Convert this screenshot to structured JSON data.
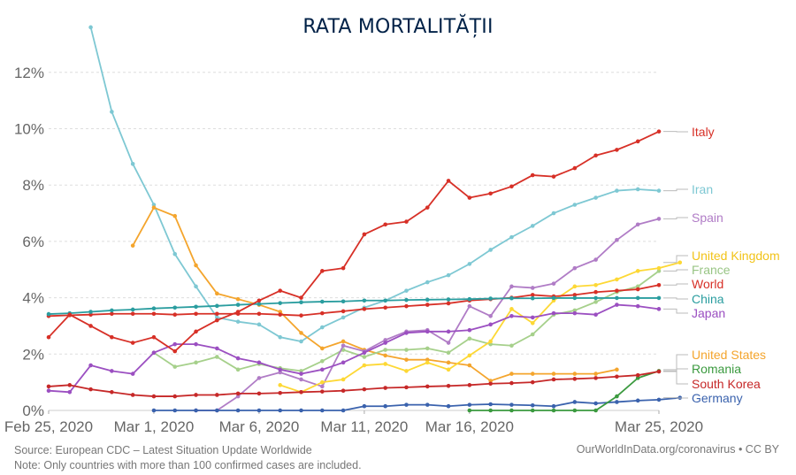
{
  "title": "RATA MORTALITĂȚII",
  "footer": {
    "source": "Source: European CDC – Latest Situation Update Worldwide",
    "note": "Note: Only countries with more than 100 confirmed cases are included.",
    "credit": "OurWorldInData.org/coronavirus • CC BY"
  },
  "chart_data": {
    "type": "line",
    "title": "RATA MORTALITĂȚII",
    "xlabel": "",
    "ylabel": "",
    "x_start": "Feb 25, 2020",
    "x_end": "Mar 25, 2020",
    "x_days": 30,
    "ylim": [
      0,
      13
    ],
    "y_ticks": [
      0,
      2,
      4,
      6,
      8,
      10,
      12
    ],
    "y_tick_labels": [
      "0%",
      "2%",
      "4%",
      "6%",
      "8%",
      "10%",
      "12%"
    ],
    "x_ticks": [
      {
        "day": 0,
        "label": "Feb 25, 2020"
      },
      {
        "day": 5,
        "label": "Mar 1, 2020"
      },
      {
        "day": 10,
        "label": "Mar 6, 2020"
      },
      {
        "day": 15,
        "label": "Mar 11, 2020"
      },
      {
        "day": 20,
        "label": "Mar 16, 2020"
      },
      {
        "day": 29,
        "label": "Mar 25, 2020"
      }
    ],
    "grid": true,
    "legend": "right (line-end labels)",
    "series": [
      {
        "name": "Italy",
        "color": "#d73027",
        "start_day": 0,
        "values": [
          2.6,
          3.4,
          3.0,
          2.6,
          2.4,
          2.6,
          2.1,
          2.8,
          3.2,
          3.5,
          3.9,
          4.25,
          4.0,
          4.95,
          5.05,
          6.25,
          6.6,
          6.7,
          7.2,
          8.15,
          7.55,
          7.7,
          7.95,
          8.35,
          8.3,
          8.6,
          9.05,
          9.25,
          9.55,
          9.9
        ]
      },
      {
        "name": "Iran",
        "color": "#7ec8d3",
        "start_day": 2,
        "values": [
          13.6,
          10.6,
          8.75,
          7.3,
          5.55,
          4.4,
          3.3,
          3.15,
          3.05,
          2.6,
          2.45,
          2.95,
          3.3,
          3.65,
          3.9,
          4.25,
          4.55,
          4.8,
          5.2,
          5.7,
          6.15,
          6.55,
          7.0,
          7.3,
          7.55,
          7.8,
          7.85,
          7.8
        ]
      },
      {
        "name": "Spain",
        "color": "#b07cc6",
        "start_day": 7,
        "values": [
          0,
          0,
          0.5,
          1.15,
          1.35,
          1.1,
          0.85,
          2.3,
          2.1,
          2.5,
          2.8,
          2.85,
          2.4,
          3.7,
          3.35,
          4.4,
          4.35,
          4.5,
          5.05,
          5.35,
          6.05,
          6.6,
          6.8
        ]
      },
      {
        "name": "United Kingdom",
        "color": "#fdd835",
        "start_day": 11,
        "values": [
          0.9,
          0.65,
          1.0,
          1.1,
          1.6,
          1.65,
          1.4,
          1.7,
          1.45,
          1.95,
          2.45,
          3.6,
          3.1,
          3.9,
          4.4,
          4.45,
          4.65,
          4.95,
          5.05,
          5.25
        ]
      },
      {
        "name": "France",
        "color": "#a6d08b",
        "start_day": 5,
        "values": [
          2.05,
          1.55,
          1.7,
          1.9,
          1.45,
          1.65,
          1.5,
          1.4,
          1.75,
          2.15,
          1.9,
          2.15,
          2.15,
          2.2,
          2.05,
          2.55,
          2.35,
          2.3,
          2.7,
          3.4,
          3.55,
          3.85,
          4.2,
          4.4,
          4.95
        ]
      },
      {
        "name": "World",
        "color": "#d73027",
        "start_day": 0,
        "values": [
          3.35,
          3.38,
          3.4,
          3.43,
          3.43,
          3.43,
          3.4,
          3.43,
          3.43,
          3.43,
          3.43,
          3.4,
          3.37,
          3.45,
          3.52,
          3.6,
          3.65,
          3.7,
          3.75,
          3.8,
          3.9,
          3.95,
          4.0,
          4.1,
          4.05,
          4.1,
          4.2,
          4.25,
          4.3,
          4.45
        ]
      },
      {
        "name": "China",
        "color": "#2a9d9f",
        "start_day": 0,
        "values": [
          3.42,
          3.45,
          3.5,
          3.55,
          3.58,
          3.62,
          3.65,
          3.68,
          3.71,
          3.75,
          3.78,
          3.81,
          3.84,
          3.86,
          3.87,
          3.9,
          3.9,
          3.92,
          3.93,
          3.94,
          3.95,
          3.97,
          3.98,
          3.98,
          3.99,
          3.99,
          3.99,
          3.99,
          3.99,
          3.99
        ]
      },
      {
        "name": "Japan",
        "color": "#9b4fc1",
        "start_day": 0,
        "values": [
          0.7,
          0.65,
          1.6,
          1.4,
          1.3,
          2.05,
          2.35,
          2.35,
          2.2,
          1.85,
          1.7,
          1.45,
          1.3,
          1.45,
          1.7,
          2.05,
          2.4,
          2.75,
          2.8,
          2.8,
          2.85,
          3.05,
          3.35,
          3.3,
          3.45,
          3.45,
          3.4,
          3.75,
          3.7,
          3.6
        ]
      },
      {
        "name": "United States",
        "color": "#f4a52d",
        "start_day": 4,
        "values": [
          5.85,
          7.2,
          6.9,
          5.15,
          4.15,
          3.95,
          3.75,
          3.5,
          2.75,
          2.2,
          2.45,
          2.15,
          1.95,
          1.8,
          1.8,
          1.7,
          1.6,
          1.05,
          1.3,
          1.3,
          1.3,
          1.3,
          1.3,
          1.45
        ]
      },
      {
        "name": "Romania",
        "color": "#3b9a3f",
        "start_day": 20,
        "values": [
          0,
          0,
          0,
          0,
          0,
          0,
          0,
          0.5,
          1.15,
          1.4
        ]
      },
      {
        "name": "South Korea",
        "color": "#c62828",
        "start_day": 0,
        "values": [
          0.85,
          0.9,
          0.75,
          0.65,
          0.55,
          0.5,
          0.5,
          0.55,
          0.55,
          0.6,
          0.6,
          0.62,
          0.65,
          0.67,
          0.7,
          0.75,
          0.8,
          0.82,
          0.85,
          0.87,
          0.9,
          0.95,
          0.97,
          1.0,
          1.1,
          1.12,
          1.15,
          1.2,
          1.25,
          1.38
        ]
      },
      {
        "name": "Germany",
        "color": "#3a62ad",
        "start_day": 5,
        "values": [
          0,
          0,
          0,
          0,
          0,
          0,
          0,
          0,
          0,
          0,
          0.15,
          0.15,
          0.2,
          0.2,
          0.15,
          0.2,
          0.22,
          0.2,
          0.18,
          0.15,
          0.3,
          0.25,
          0.3,
          0.35,
          0.38,
          0.45
        ]
      }
    ],
    "legend_entries": [
      {
        "name": "Italy",
        "color": "#d73027"
      },
      {
        "name": "Iran",
        "color": "#7ec8d3"
      },
      {
        "name": "Spain",
        "color": "#b07cc6"
      },
      {
        "name": "United Kingdom",
        "color": "#f2c318"
      },
      {
        "name": "France",
        "color": "#99c585"
      },
      {
        "name": "World",
        "color": "#d73027"
      },
      {
        "name": "China",
        "color": "#2a9d9f"
      },
      {
        "name": "Japan",
        "color": "#9b4fc1"
      },
      {
        "name": "United States",
        "color": "#f4a52d"
      },
      {
        "name": "Romania",
        "color": "#3b9a3f"
      },
      {
        "name": "South Korea",
        "color": "#c62828"
      },
      {
        "name": "Germany",
        "color": "#3a62ad"
      }
    ]
  }
}
